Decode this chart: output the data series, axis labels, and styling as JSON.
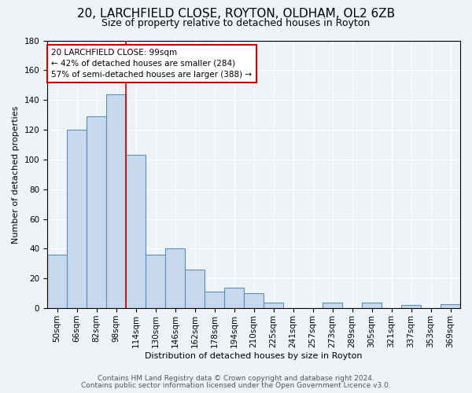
{
  "title": "20, LARCHFIELD CLOSE, ROYTON, OLDHAM, OL2 6ZB",
  "subtitle": "Size of property relative to detached houses in Royton",
  "xlabel": "Distribution of detached houses by size in Royton",
  "ylabel": "Number of detached properties",
  "bar_labels": [
    "50sqm",
    "66sqm",
    "82sqm",
    "98sqm",
    "114sqm",
    "130sqm",
    "146sqm",
    "162sqm",
    "178sqm",
    "194sqm",
    "210sqm",
    "225sqm",
    "241sqm",
    "257sqm",
    "273sqm",
    "289sqm",
    "305sqm",
    "321sqm",
    "337sqm",
    "353sqm",
    "369sqm"
  ],
  "bar_values": [
    36,
    120,
    129,
    144,
    103,
    36,
    40,
    26,
    11,
    14,
    10,
    4,
    0,
    0,
    4,
    0,
    4,
    0,
    2,
    0,
    3
  ],
  "bar_color": "#c8d8ed",
  "bar_edge_color": "#5a8fc2",
  "vline_color": "#cc0000",
  "annotation_text": "20 LARCHFIELD CLOSE: 99sqm\n← 42% of detached houses are smaller (284)\n57% of semi-detached houses are larger (388) →",
  "annotation_box_color": "#ffffff",
  "annotation_box_edge": "#cc0000",
  "ylim": [
    0,
    180
  ],
  "yticks": [
    0,
    20,
    40,
    60,
    80,
    100,
    120,
    140,
    160,
    180
  ],
  "footer1": "Contains HM Land Registry data © Crown copyright and database right 2024.",
  "footer2": "Contains public sector information licensed under the Open Government Licence v3.0.",
  "bg_color": "#eef3f8",
  "plot_bg_color": "#eef3f8",
  "title_fontsize": 11,
  "subtitle_fontsize": 9,
  "axis_label_fontsize": 8,
  "tick_fontsize": 7.5,
  "footer_fontsize": 6.5,
  "annotation_fontsize": 7.5
}
